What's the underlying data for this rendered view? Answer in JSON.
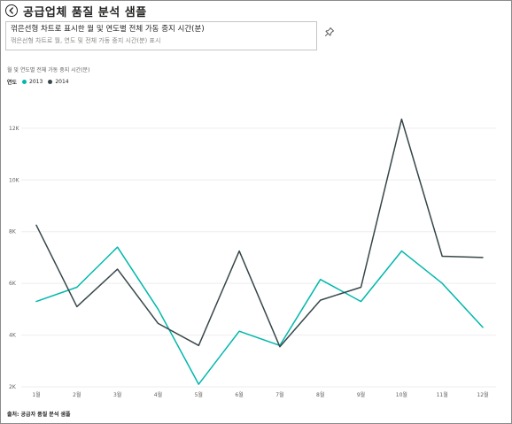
{
  "page": {
    "title": "공급업체 품질 분석 샘플",
    "back_icon": "back-arrow-icon"
  },
  "visual": {
    "title": "꺾은선형 차트로 표시한 월 및 연도별 전체 가동 중지 시간(분)",
    "subtitle": "꺾은선형 차트로 월, 연도 및 전체 가동 중지 시간(분) 표시",
    "pin_icon": "pin-icon"
  },
  "chart_data": {
    "type": "line",
    "title": "월 및 연도별 전체 가동 중지 시간(분)",
    "legend_title": "연도",
    "legend_position": "top-left",
    "categories": [
      "1월",
      "2월",
      "3월",
      "4월",
      "5월",
      "6월",
      "7월",
      "8월",
      "9월",
      "10월",
      "11월",
      "12월"
    ],
    "series": [
      {
        "name": "2013",
        "color": "#01b8aa",
        "values": [
          5300,
          5850,
          7400,
          5000,
          2100,
          4150,
          3600,
          6150,
          5300,
          7250,
          6000,
          4300
        ]
      },
      {
        "name": "2014",
        "color": "#374649",
        "values": [
          8250,
          5100,
          6550,
          4450,
          3600,
          7250,
          3550,
          5350,
          5850,
          12350,
          7050,
          7000
        ]
      }
    ],
    "y_ticks": [
      "2K",
      "4K",
      "6K",
      "8K",
      "10K",
      "12K"
    ],
    "y_tick_values": [
      2000,
      4000,
      6000,
      8000,
      10000,
      12000
    ],
    "ylim": [
      2000,
      13500
    ],
    "grid": true
  },
  "footer": {
    "source": "출처: 공급자 품질 분석 샘플"
  }
}
